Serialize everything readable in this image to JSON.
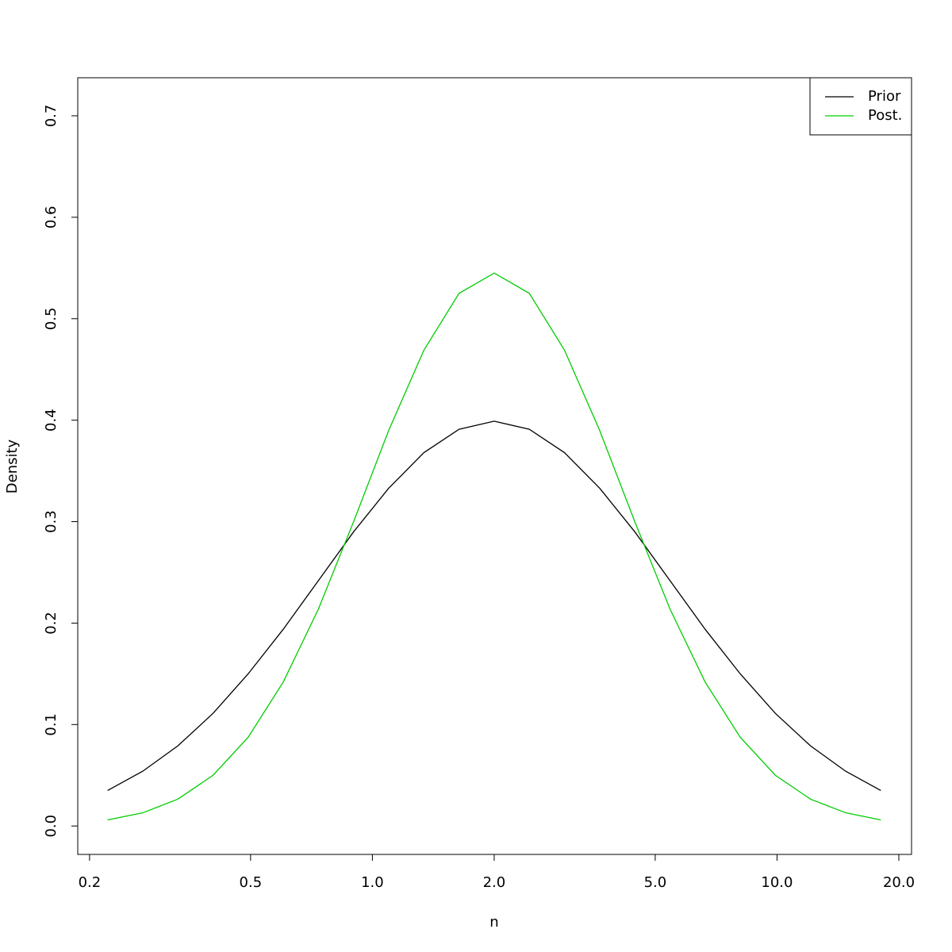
{
  "chart_data": {
    "type": "line",
    "xlabel": "n",
    "ylabel": "Density",
    "xlog": true,
    "x": [
      0.2216,
      0.2707,
      0.3306,
      0.4038,
      0.4932,
      0.6024,
      0.7358,
      0.8987,
      1.0976,
      1.3406,
      1.6375,
      2,
      2.4428,
      2.9836,
      3.6442,
      4.4511,
      5.4366,
      6.6402,
      8.1104,
      9.9061,
      12.0993,
      14.7781,
      18.0501
    ],
    "series": [
      {
        "name": "Prior",
        "color": "#000000",
        "values": [
          0.035,
          0.054,
          0.079,
          0.111,
          0.15,
          0.194,
          0.242,
          0.29,
          0.333,
          0.368,
          0.391,
          0.399,
          0.391,
          0.368,
          0.333,
          0.29,
          0.242,
          0.194,
          0.15,
          0.111,
          0.079,
          0.054,
          0.035
        ]
      },
      {
        "name": "Post.",
        "color": "#00cd00",
        "values": [
          0.006,
          0.013,
          0.0265,
          0.05,
          0.0875,
          0.142,
          0.214,
          0.3,
          0.39,
          0.469,
          0.525,
          0.545,
          0.525,
          0.469,
          0.39,
          0.3,
          0.214,
          0.142,
          0.0875,
          0.05,
          0.0265,
          0.013,
          0.006
        ]
      }
    ],
    "xlim": [
      0.187,
      21.5
    ],
    "ylim": [
      -0.028,
      0.7375
    ],
    "xticks": [
      0.2,
      0.5,
      {
        "value": 1,
        "label": "1.0"
      },
      {
        "value": 2,
        "label": "2.0"
      },
      {
        "value": 5,
        "label": "5.0"
      },
      {
        "value": 10,
        "label": "10.0"
      },
      {
        "value": 20,
        "label": "20.0"
      }
    ],
    "yticks": [
      {
        "value": 0,
        "label": "0.0"
      },
      0.1,
      0.2,
      0.3,
      0.4,
      0.5,
      0.6,
      0.7
    ],
    "legend": "top-right"
  }
}
